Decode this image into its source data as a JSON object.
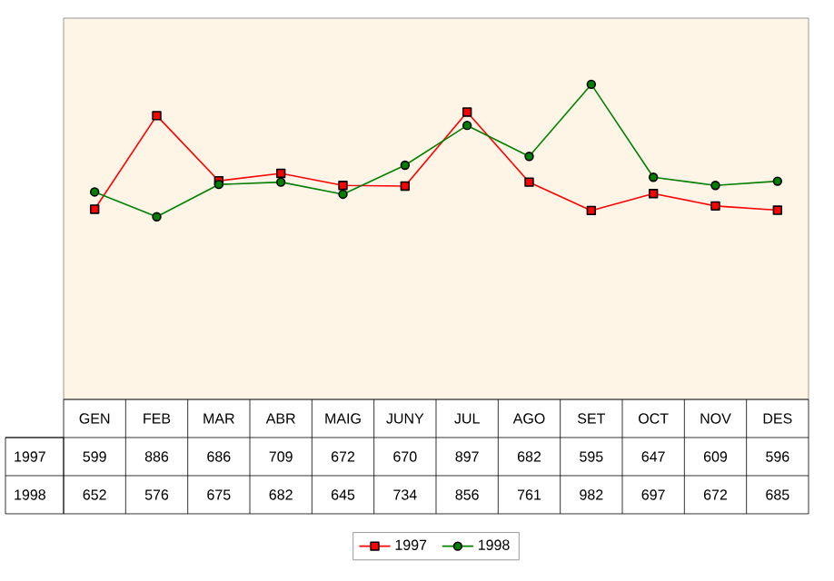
{
  "chart_data": {
    "type": "line",
    "categories": [
      "GEN",
      "FEB",
      "MAR",
      "ABR",
      "MAIG",
      "JUNY",
      "JUL",
      "AGO",
      "SET",
      "OCT",
      "NOV",
      "DES"
    ],
    "series": [
      {
        "name": "1997",
        "color": "#ff0000",
        "marker": "square",
        "values": [
          599,
          886,
          686,
          709,
          672,
          670,
          897,
          682,
          595,
          647,
          609,
          596
        ]
      },
      {
        "name": "1998",
        "color": "#008000",
        "marker": "circle",
        "values": [
          652,
          576,
          675,
          682,
          645,
          734,
          856,
          761,
          982,
          697,
          672,
          685
        ]
      }
    ],
    "data_labels": true,
    "legend": "bottom"
  }
}
